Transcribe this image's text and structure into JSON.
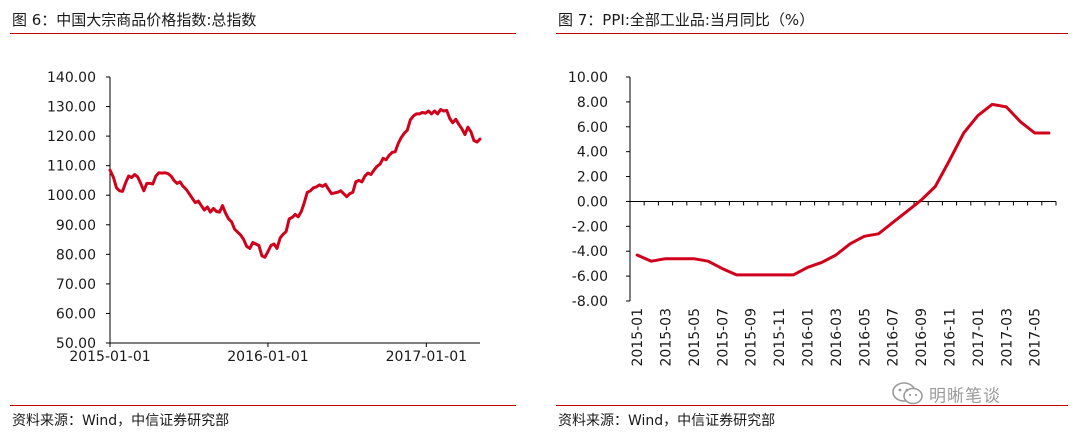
{
  "left": {
    "title": "图 6：中国大宗商品价格指数:总指数",
    "source": "资料来源：Wind，中信证券研究部"
  },
  "right": {
    "title": "图 7：PPI:全部工业品:当月同比（%）",
    "source": "资料来源：Wind，中信证券研究部"
  },
  "watermark": {
    "text": "明晰笔谈",
    "icon": "wechat-icon"
  },
  "colors": {
    "series": "#d0021b",
    "rule": "#c00000",
    "axis": "#000000"
  },
  "chart_data": [
    {
      "type": "line",
      "title": "中国大宗商品价格指数:总指数",
      "xlabel": "",
      "ylabel": "",
      "ylim": [
        50,
        140
      ],
      "yticks": [
        "50.00",
        "60.00",
        "70.00",
        "80.00",
        "90.00",
        "100.00",
        "110.00",
        "120.00",
        "130.00",
        "140.00"
      ],
      "xlim": [
        "2015-01-01",
        "2017-05-05"
      ],
      "xticks": [
        "2015-01-01",
        "2016-01-01",
        "2017-01-01"
      ],
      "grid": false,
      "series": [
        {
          "x": [
            "2015-01-01",
            "2015-01-09",
            "2015-01-16",
            "2015-01-23",
            "2015-01-30",
            "2015-02-06",
            "2015-02-13",
            "2015-02-20",
            "2015-02-27",
            "2015-03-06",
            "2015-03-13",
            "2015-03-20",
            "2015-03-27",
            "2015-04-03",
            "2015-04-10",
            "2015-04-17",
            "2015-04-24",
            "2015-05-01",
            "2015-05-08",
            "2015-05-15",
            "2015-05-22",
            "2015-05-29",
            "2015-06-05",
            "2015-06-12",
            "2015-06-19",
            "2015-06-26",
            "2015-07-03",
            "2015-07-10",
            "2015-07-17",
            "2015-07-24",
            "2015-07-31",
            "2015-08-07",
            "2015-08-14",
            "2015-08-21",
            "2015-08-28",
            "2015-09-04",
            "2015-09-11",
            "2015-09-18",
            "2015-09-25",
            "2015-10-02",
            "2015-10-09",
            "2015-10-16",
            "2015-10-23",
            "2015-10-30",
            "2015-11-06",
            "2015-11-13",
            "2015-11-20",
            "2015-11-27",
            "2015-12-04",
            "2015-12-11",
            "2015-12-18",
            "2015-12-25",
            "2016-01-01",
            "2016-01-08",
            "2016-01-15",
            "2016-01-22",
            "2016-01-29",
            "2016-02-05",
            "2016-02-12",
            "2016-02-19",
            "2016-02-26",
            "2016-03-04",
            "2016-03-11",
            "2016-03-18",
            "2016-03-25",
            "2016-04-01",
            "2016-04-08",
            "2016-04-15",
            "2016-04-22",
            "2016-04-29",
            "2016-05-06",
            "2016-05-13",
            "2016-05-20",
            "2016-05-27",
            "2016-06-03",
            "2016-06-10",
            "2016-06-17",
            "2016-06-24",
            "2016-07-01",
            "2016-07-08",
            "2016-07-15",
            "2016-07-22",
            "2016-07-29",
            "2016-08-05",
            "2016-08-12",
            "2016-08-19",
            "2016-08-26",
            "2016-09-02",
            "2016-09-09",
            "2016-09-16",
            "2016-09-23",
            "2016-09-30",
            "2016-10-07",
            "2016-10-14",
            "2016-10-21",
            "2016-10-28",
            "2016-11-04",
            "2016-11-11",
            "2016-11-18",
            "2016-11-25",
            "2016-12-02",
            "2016-12-09",
            "2016-12-16",
            "2016-12-23",
            "2016-12-30",
            "2017-01-06",
            "2017-01-13",
            "2017-01-20",
            "2017-01-27",
            "2017-02-03",
            "2017-02-10",
            "2017-02-17",
            "2017-02-24",
            "2017-03-03",
            "2017-03-10",
            "2017-03-17",
            "2017-03-24",
            "2017-03-31",
            "2017-04-07",
            "2017-04-14",
            "2017-04-21",
            "2017-04-28",
            "2017-05-05"
          ],
          "values": [
            108.5,
            106,
            102.5,
            101.5,
            101.3,
            104.2,
            106.5,
            106,
            107,
            106.2,
            104,
            101.5,
            104,
            104,
            103.8,
            106.5,
            107.6,
            107.5,
            107.6,
            107.3,
            106.5,
            105,
            104,
            104.5,
            103,
            102,
            100.5,
            99,
            97.5,
            98,
            96.5,
            95,
            96,
            94.3,
            95.5,
            94.5,
            94.3,
            96.5,
            94,
            92,
            91,
            88.5,
            87.5,
            86.5,
            85,
            82.7,
            82,
            84,
            83.5,
            83,
            79.5,
            79,
            81,
            83,
            83.5,
            82,
            85.5,
            86.8,
            87.7,
            92,
            92.5,
            93.5,
            92.7,
            94.5,
            97.5,
            101,
            101.5,
            102.5,
            102.8,
            103.5,
            103,
            103.7,
            102,
            100.5,
            100.8,
            101,
            101.5,
            100.5,
            99.5,
            100.5,
            101,
            104.5,
            105,
            104.5,
            106.5,
            107.5,
            107,
            108.5,
            109.8,
            110.5,
            112.5,
            112,
            113.5,
            114.5,
            114.7,
            117.5,
            119.5,
            121,
            122,
            125.5,
            126.8,
            127.5,
            127.5,
            128,
            127.8,
            128.5,
            127.5,
            128.5,
            127.5,
            129,
            128.5,
            128.7,
            126,
            124.5,
            125.7,
            124,
            122.5,
            120.5,
            123,
            121.5,
            118.5,
            118,
            119
          ]
        }
      ]
    },
    {
      "type": "line",
      "title": "PPI:全部工业品:当月同比（%）",
      "xlabel": "",
      "ylabel": "",
      "ylim": [
        -8,
        10
      ],
      "yticks": [
        "-8.00",
        "-6.00",
        "-4.00",
        "-2.00",
        "0.00",
        "2.00",
        "4.00",
        "6.00",
        "8.00",
        "10.00"
      ],
      "xticks": [
        "2015-01",
        "2015-03",
        "2015-05",
        "2015-07",
        "2015-09",
        "2015-11",
        "2016-01",
        "2016-03",
        "2016-05",
        "2016-07",
        "2016-09",
        "2016-11",
        "2017-01",
        "2017-03",
        "2017-05"
      ],
      "grid": false,
      "series": [
        {
          "x": [
            "2015-01",
            "2015-02",
            "2015-03",
            "2015-04",
            "2015-05",
            "2015-06",
            "2015-07",
            "2015-08",
            "2015-09",
            "2015-10",
            "2015-11",
            "2015-12",
            "2016-01",
            "2016-02",
            "2016-03",
            "2016-04",
            "2016-05",
            "2016-06",
            "2016-07",
            "2016-08",
            "2016-09",
            "2016-10",
            "2016-11",
            "2016-12",
            "2017-01",
            "2017-02",
            "2017-03",
            "2017-04",
            "2017-05",
            "2017-06"
          ],
          "values": [
            -4.3,
            -4.8,
            -4.6,
            -4.6,
            -4.6,
            -4.8,
            -5.4,
            -5.9,
            -5.9,
            -5.9,
            -5.9,
            -5.9,
            -5.3,
            -4.9,
            -4.3,
            -3.4,
            -2.8,
            -2.6,
            -1.7,
            -0.8,
            0.1,
            1.2,
            3.3,
            5.5,
            6.9,
            7.8,
            7.6,
            6.4,
            5.5,
            5.5
          ]
        }
      ]
    }
  ]
}
